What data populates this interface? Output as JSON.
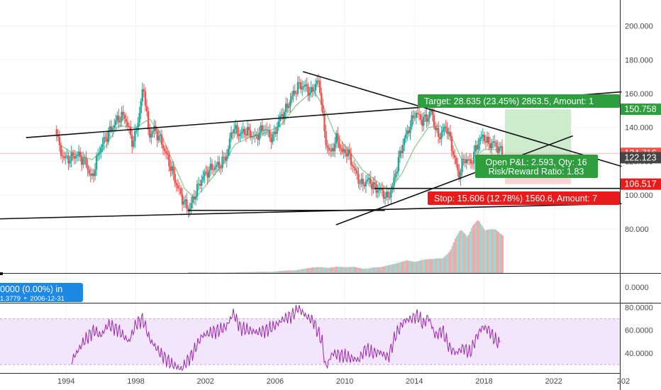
{
  "chart_data": {
    "type": "candlestick",
    "x_axis": {
      "tick_labels": [
        "1994",
        "1998",
        "2002",
        "2006",
        "2010",
        "2014",
        "2018",
        "2022",
        "202"
      ],
      "range": [
        1990.2,
        2025.8
      ]
    },
    "price_pane": {
      "y_axis_ticks": [
        "200.000",
        "180.000",
        "160.000",
        "140.000",
        "120.000",
        "100.000",
        "80.000"
      ],
      "ylim": [
        54.0,
        215.3
      ],
      "price_labels": [
        {
          "text": "150.758",
          "value": 150.758,
          "color": "#2e9e3f"
        },
        {
          "text": "124.716",
          "value": 124.716,
          "color": "#ef5350"
        },
        {
          "text": "122.123",
          "value": 122.123,
          "color": "#454545"
        },
        {
          "text": "106.517",
          "value": 106.517,
          "color": "#e81c1c"
        }
      ],
      "price_series": [
        [
          1993.4,
          139
        ],
        [
          1993.6,
          125
        ],
        [
          1994.0,
          121
        ],
        [
          1994.6,
          124
        ],
        [
          1995.1,
          119
        ],
        [
          1995.4,
          109
        ],
        [
          1995.9,
          128
        ],
        [
          1996.4,
          137
        ],
        [
          1996.9,
          145
        ],
        [
          1997.3,
          147
        ],
        [
          1997.8,
          130
        ],
        [
          1998.1,
          145
        ],
        [
          1998.4,
          165
        ],
        [
          1998.7,
          135
        ],
        [
          1999.0,
          139
        ],
        [
          1999.4,
          132
        ],
        [
          1999.8,
          121
        ],
        [
          2000.3,
          106
        ],
        [
          2000.7,
          96
        ],
        [
          2001.0,
          91
        ],
        [
          2001.4,
          102
        ],
        [
          2001.8,
          111
        ],
        [
          2002.3,
          116
        ],
        [
          2002.8,
          118
        ],
        [
          2003.2,
          124
        ],
        [
          2003.5,
          140
        ],
        [
          2003.9,
          136
        ],
        [
          2004.3,
          138
        ],
        [
          2004.8,
          134
        ],
        [
          2005.3,
          140
        ],
        [
          2005.8,
          133
        ],
        [
          2006.2,
          145
        ],
        [
          2006.6,
          151
        ],
        [
          2006.9,
          158
        ],
        [
          2007.3,
          165
        ],
        [
          2007.7,
          164
        ],
        [
          2008.0,
          160
        ],
        [
          2008.4,
          168
        ],
        [
          2008.6,
          158
        ],
        [
          2008.8,
          134
        ],
        [
          2009.1,
          124
        ],
        [
          2009.5,
          134
        ],
        [
          2009.8,
          125
        ],
        [
          2010.1,
          126
        ],
        [
          2010.5,
          115
        ],
        [
          2010.9,
          106
        ],
        [
          2011.3,
          109
        ],
        [
          2011.7,
          104
        ],
        [
          2012.0,
          103
        ],
        [
          2012.4,
          98
        ],
        [
          2012.7,
          105
        ],
        [
          2012.9,
          115
        ],
        [
          2013.3,
          131
        ],
        [
          2013.7,
          141
        ],
        [
          2014.0,
          149
        ],
        [
          2014.4,
          144
        ],
        [
          2014.7,
          146
        ],
        [
          2014.9,
          150
        ],
        [
          2015.3,
          134
        ],
        [
          2015.8,
          141
        ],
        [
          2016.2,
          124
        ],
        [
          2016.5,
          111
        ],
        [
          2016.8,
          122
        ],
        [
          2017.2,
          119
        ],
        [
          2017.6,
          131
        ],
        [
          2017.9,
          135
        ],
        [
          2018.2,
          130
        ],
        [
          2018.5,
          131
        ],
        [
          2018.8,
          127
        ],
        [
          2019.0,
          125
        ]
      ],
      "moving_average": [
        [
          1993.6,
          130
        ],
        [
          1994.5,
          124
        ],
        [
          1995.5,
          121
        ],
        [
          1996.2,
          128
        ],
        [
          1997.0,
          141
        ],
        [
          1998.0,
          140
        ],
        [
          1998.8,
          145
        ],
        [
          1999.5,
          135
        ],
        [
          2000.2,
          118
        ],
        [
          2000.8,
          104
        ],
        [
          2001.4,
          98
        ],
        [
          2002.2,
          108
        ],
        [
          2003.0,
          118
        ],
        [
          2003.7,
          130
        ],
        [
          2004.5,
          134
        ],
        [
          2005.5,
          137
        ],
        [
          2006.3,
          141
        ],
        [
          2007.2,
          153
        ],
        [
          2008.2,
          162
        ],
        [
          2008.8,
          152
        ],
        [
          2009.4,
          137
        ],
        [
          2010.2,
          127
        ],
        [
          2011.0,
          115
        ],
        [
          2012.0,
          107
        ],
        [
          2012.6,
          103
        ],
        [
          2013.3,
          113
        ],
        [
          2014.0,
          128
        ],
        [
          2014.8,
          140
        ],
        [
          2015.5,
          141
        ],
        [
          2016.2,
          133
        ],
        [
          2016.8,
          119
        ],
        [
          2017.4,
          122
        ],
        [
          2018.0,
          127
        ],
        [
          2018.8,
          127
        ]
      ],
      "trendlines": [
        {
          "from": [
            1991.7,
            134
          ],
          "to": [
            2025.9,
            161
          ]
        },
        {
          "from": [
            1990.2,
            86
          ],
          "to": [
            2025.9,
            95
          ]
        },
        {
          "from": [
            2007.6,
            173
          ],
          "to": [
            2025.9,
            117
          ]
        },
        {
          "from": [
            2001.0,
            91
          ],
          "to": [
            2012.3,
            91
          ]
        },
        {
          "from": [
            2011.7,
            104
          ],
          "to": [
            2025.9,
            104
          ]
        },
        {
          "from": [
            2009.5,
            82.5
          ],
          "to": [
            2023.1,
            135
          ]
        }
      ],
      "position_tool": {
        "start_x": 2019.2,
        "end_x": 2023.0,
        "entry": 122.123,
        "target": 150.758,
        "stop": 106.517,
        "target_label": "Target: 28.635 (23.45%) 2863.5, Amount: 1",
        "pnl_label": "Open P&L: 2.593, Qty: 16",
        "rr_label": "Risk/Reward Ratio: 1.83",
        "stop_label": "Stop: 15.606 (12.78%) 1560.6, Amount: 7"
      },
      "volume": {
        "x": [
          2002.0,
          2004.0,
          2005.8,
          2006.5,
          2007.0,
          2007.5,
          2008.0,
          2008.5,
          2009.0,
          2009.5,
          2010.0,
          2010.5,
          2011.0,
          2011.5,
          2012.0,
          2012.5,
          2013.0,
          2013.5,
          2014.0,
          2014.5,
          2015.0,
          2015.5,
          2016.0,
          2016.3,
          2016.6,
          2017.0,
          2017.3,
          2017.6,
          2018.0,
          2018.3,
          2018.6,
          2018.9
        ],
        "values": [
          0.5,
          0.7,
          1.0,
          2.5,
          3.5,
          4.5,
          5,
          5,
          4,
          5,
          5,
          6,
          5,
          7,
          6,
          7,
          8,
          10,
          9,
          12,
          15,
          20,
          25,
          35,
          40,
          30,
          38,
          42,
          34,
          36,
          38,
          37
        ]
      },
      "up_color": "#26a69a",
      "down_color": "#ef5350"
    },
    "middle_pane": {
      "y_axis_ticks": [
        "0.0000"
      ],
      "info_line1": "0000 (0.00%) in",
      "info_line2": "1.3779  ⚬  2006-12-31"
    },
    "rsi_pane": {
      "y_axis_ticks": [
        "80.0000",
        "60.0000",
        "40.0000"
      ],
      "ylim": [
        22.7,
        83.3
      ],
      "band": [
        30,
        70
      ],
      "line_color": "#9c27b0",
      "rsi_series": [
        [
          1994.3,
          33
        ],
        [
          1995.0,
          50
        ],
        [
          1995.6,
          60
        ],
        [
          1996.0,
          55
        ],
        [
          1996.4,
          65
        ],
        [
          1997.0,
          60
        ],
        [
          1997.6,
          50
        ],
        [
          1998.0,
          65
        ],
        [
          1998.4,
          70
        ],
        [
          1998.8,
          52
        ],
        [
          1999.4,
          40
        ],
        [
          2000.0,
          31
        ],
        [
          2000.6,
          26
        ],
        [
          2001.2,
          38
        ],
        [
          2001.8,
          55
        ],
        [
          2002.3,
          58
        ],
        [
          2002.8,
          60
        ],
        [
          2003.2,
          63
        ],
        [
          2003.6,
          75
        ],
        [
          2004.0,
          62
        ],
        [
          2004.5,
          60
        ],
        [
          2005.0,
          58
        ],
        [
          2005.5,
          60
        ],
        [
          2006.0,
          64
        ],
        [
          2006.5,
          70
        ],
        [
          2007.0,
          73
        ],
        [
          2007.3,
          80
        ],
        [
          2007.8,
          72
        ],
        [
          2008.2,
          68
        ],
        [
          2008.7,
          50
        ],
        [
          2008.9,
          27
        ],
        [
          2009.3,
          40
        ],
        [
          2009.8,
          38
        ],
        [
          2010.3,
          36
        ],
        [
          2010.8,
          34
        ],
        [
          2011.2,
          44
        ],
        [
          2011.6,
          40
        ],
        [
          2012.0,
          41
        ],
        [
          2012.5,
          36
        ],
        [
          2012.9,
          55
        ],
        [
          2013.4,
          68
        ],
        [
          2013.8,
          70
        ],
        [
          2014.2,
          73
        ],
        [
          2014.5,
          65
        ],
        [
          2014.8,
          72
        ],
        [
          2015.2,
          55
        ],
        [
          2015.6,
          60
        ],
        [
          2016.0,
          45
        ],
        [
          2016.4,
          40
        ],
        [
          2016.8,
          45
        ],
        [
          2017.2,
          40
        ],
        [
          2017.6,
          55
        ],
        [
          2017.9,
          63
        ],
        [
          2018.3,
          60
        ],
        [
          2018.6,
          52
        ],
        [
          2018.9,
          48
        ]
      ]
    }
  }
}
